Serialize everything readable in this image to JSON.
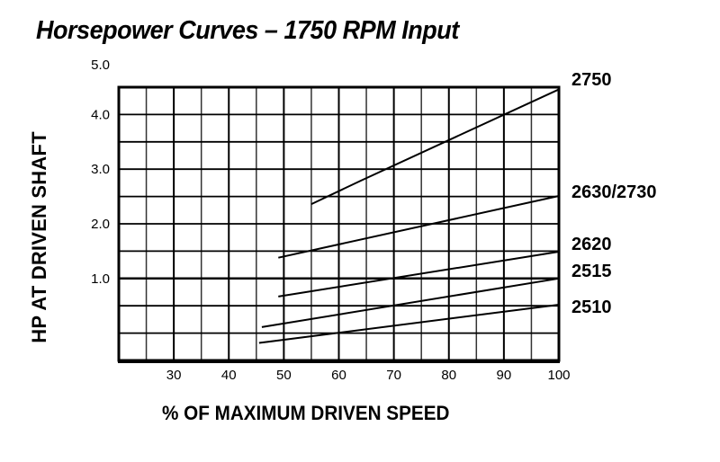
{
  "chart_data": {
    "type": "line",
    "title": "Horsepower Curves – 1750 RPM Input",
    "xlabel": "% OF MAXIMUM DRIVEN SPEED",
    "ylabel": "HP AT DRIVEN SHAFT",
    "xlim": [
      20,
      100
    ],
    "ylim": [
      -0.5,
      4.5
    ],
    "x_ticks": [
      30,
      40,
      50,
      60,
      70,
      80,
      90,
      100
    ],
    "x_tick_labels": [
      "30",
      "40",
      "50",
      "60",
      "70",
      "80",
      "90",
      "100"
    ],
    "y_ticks": [
      1.0,
      2.0,
      3.0,
      4.0,
      5.0
    ],
    "y_tick_labels": [
      "1.0",
      "2.0",
      "3.0",
      "4.0",
      "5.0"
    ],
    "grid": true,
    "grid_x_step": 5,
    "grid_y_step": 0.5,
    "legend_position": "right-inline",
    "series": [
      {
        "name": "2750",
        "x": [
          55,
          64,
          100
        ],
        "y": [
          2.36,
          2.79,
          4.46
        ]
      },
      {
        "name": "2630/2730",
        "x": [
          49,
          100
        ],
        "y": [
          1.38,
          2.51
        ]
      },
      {
        "name": "2620",
        "x": [
          49,
          100
        ],
        "y": [
          0.67,
          1.49
        ]
      },
      {
        "name": "2515",
        "x": [
          46,
          100
        ],
        "y": [
          0.11,
          1.0
        ]
      },
      {
        "name": "2510",
        "x": [
          45.5,
          100
        ],
        "y": [
          -0.18,
          0.52
        ]
      }
    ]
  },
  "labels": {
    "title": "Horsepower Curves – 1750 RPM Input",
    "xlabel": "% OF MAXIMUM DRIVEN SPEED",
    "ylabel": "HP AT DRIVEN SHAFT"
  }
}
